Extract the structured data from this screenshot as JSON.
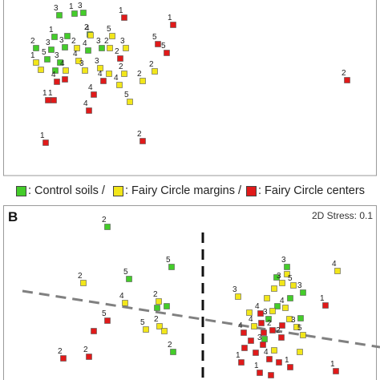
{
  "legend": {
    "items": [
      {
        "label": ": Control soils /",
        "color": "#44cc2a"
      },
      {
        "label": ": Fairy Circle margins /",
        "color": "#f2e61a"
      },
      {
        "label": ": Fairy Circle centers",
        "color": "#e01a1a"
      }
    ]
  },
  "chart_data": [
    {
      "type": "scatter",
      "panel_label": "",
      "stress_label": "",
      "series": [
        {
          "name": "Control soils",
          "color": "#44cc2a",
          "points": [
            {
              "x": 74,
              "y": 19,
              "label": "3"
            },
            {
              "x": 93,
              "y": 17,
              "label": "1"
            },
            {
              "x": 104,
              "y": 16,
              "label": "3"
            },
            {
              "x": 68,
              "y": 46,
              "label": "1"
            },
            {
              "x": 112,
              "y": 43,
              "label": "2"
            },
            {
              "x": 84,
              "y": 45,
              "label": ""
            },
            {
              "x": 45,
              "y": 60,
              "label": "2"
            },
            {
              "x": 64,
              "y": 62,
              "label": "3"
            },
            {
              "x": 81,
              "y": 59,
              "label": "3"
            },
            {
              "x": 59,
              "y": 74,
              "label": "5"
            },
            {
              "x": 75,
              "y": 78,
              "label": "3"
            },
            {
              "x": 110,
              "y": 63,
              "label": "4"
            },
            {
              "x": 127,
              "y": 60,
              "label": "3"
            },
            {
              "x": 69,
              "y": 88,
              "label": ""
            }
          ]
        },
        {
          "name": "Fairy Circle margins",
          "color": "#f2e61a",
          "points": [
            {
              "x": 113,
              "y": 44,
              "label": "4"
            },
            {
              "x": 140,
              "y": 45,
              "label": "5"
            },
            {
              "x": 96,
              "y": 60,
              "label": "2"
            },
            {
              "x": 45,
              "y": 78,
              "label": "1"
            },
            {
              "x": 98,
              "y": 76,
              "label": "4"
            },
            {
              "x": 137,
              "y": 60,
              "label": "2"
            },
            {
              "x": 157,
              "y": 60,
              "label": "3"
            },
            {
              "x": 51,
              "y": 87,
              "label": ""
            },
            {
              "x": 82,
              "y": 88,
              "label": "4"
            },
            {
              "x": 106,
              "y": 88,
              "label": "3"
            },
            {
              "x": 125,
              "y": 85,
              "label": "3"
            },
            {
              "x": 136,
              "y": 92,
              "label": ""
            },
            {
              "x": 155,
              "y": 92,
              "label": "2"
            },
            {
              "x": 178,
              "y": 101,
              "label": "2"
            },
            {
              "x": 149,
              "y": 106,
              "label": "4"
            },
            {
              "x": 193,
              "y": 89,
              "label": "2"
            },
            {
              "x": 162,
              "y": 127,
              "label": "5"
            }
          ]
        },
        {
          "name": "Fairy Circle centers",
          "color": "#e01a1a",
          "points": [
            {
              "x": 155,
              "y": 22,
              "label": "1"
            },
            {
              "x": 216,
              "y": 31,
              "label": "1"
            },
            {
              "x": 197,
              "y": 55,
              "label": "5"
            },
            {
              "x": 208,
              "y": 66,
              "label": "5"
            },
            {
              "x": 150,
              "y": 73,
              "label": "2"
            },
            {
              "x": 81,
              "y": 99,
              "label": ""
            },
            {
              "x": 71,
              "y": 102,
              "label": "4"
            },
            {
              "x": 129,
              "y": 101,
              "label": "4"
            },
            {
              "x": 117,
              "y": 118,
              "label": "4"
            },
            {
              "x": 60,
              "y": 125,
              "label": "1"
            },
            {
              "x": 67,
              "y": 125,
              "label": "1"
            },
            {
              "x": 111,
              "y": 138,
              "label": "4"
            },
            {
              "x": 57,
              "y": 178,
              "label": "1"
            },
            {
              "x": 178,
              "y": 176,
              "label": "2"
            },
            {
              "x": 433,
              "y": 100,
              "label": "2"
            }
          ]
        }
      ]
    },
    {
      "type": "scatter",
      "panel_label": "B",
      "stress_label": "2D Stress: 0.1",
      "series": [
        {
          "name": "Control soils",
          "color": "#44cc2a",
          "points": [
            {
              "x": 134,
              "y": 283,
              "label": "2"
            },
            {
              "x": 214,
              "y": 333,
              "label": "5"
            },
            {
              "x": 161,
              "y": 348,
              "label": "5"
            },
            {
              "x": 196,
              "y": 384,
              "label": ""
            },
            {
              "x": 208,
              "y": 382,
              "label": ""
            },
            {
              "x": 216,
              "y": 439,
              "label": "2"
            },
            {
              "x": 358,
              "y": 333,
              "label": "3"
            },
            {
              "x": 345,
              "y": 346,
              "label": ""
            },
            {
              "x": 378,
              "y": 365,
              "label": "3"
            },
            {
              "x": 362,
              "y": 372,
              "label": ""
            },
            {
              "x": 346,
              "y": 382,
              "label": ""
            },
            {
              "x": 375,
              "y": 397,
              "label": ""
            },
            {
              "x": 335,
              "y": 398,
              "label": "3"
            },
            {
              "x": 330,
              "y": 423,
              "label": ""
            }
          ]
        },
        {
          "name": "Fairy Circle margins",
          "color": "#f2e61a",
          "points": [
            {
              "x": 104,
              "y": 353,
              "label": "2"
            },
            {
              "x": 156,
              "y": 378,
              "label": "4"
            },
            {
              "x": 198,
              "y": 376,
              "label": "2"
            },
            {
              "x": 182,
              "y": 411,
              "label": "5"
            },
            {
              "x": 199,
              "y": 407,
              "label": "2"
            },
            {
              "x": 205,
              "y": 413,
              "label": ""
            },
            {
              "x": 358,
              "y": 342,
              "label": ""
            },
            {
              "x": 421,
              "y": 338,
              "label": "4"
            },
            {
              "x": 352,
              "y": 353,
              "label": "3"
            },
            {
              "x": 366,
              "y": 356,
              "label": "5"
            },
            {
              "x": 342,
              "y": 360,
              "label": ""
            },
            {
              "x": 297,
              "y": 370,
              "label": "3"
            },
            {
              "x": 333,
              "y": 372,
              "label": ""
            },
            {
              "x": 356,
              "y": 384,
              "label": "4"
            },
            {
              "x": 340,
              "y": 388,
              "label": ""
            },
            {
              "x": 311,
              "y": 390,
              "label": ""
            },
            {
              "x": 361,
              "y": 398,
              "label": ""
            },
            {
              "x": 317,
              "y": 407,
              "label": "4"
            },
            {
              "x": 370,
              "y": 408,
              "label": "3"
            },
            {
              "x": 378,
              "y": 418,
              "label": "5"
            },
            {
              "x": 342,
              "y": 437,
              "label": ""
            },
            {
              "x": 374,
              "y": 439,
              "label": ""
            }
          ]
        },
        {
          "name": "Fairy Circle centers",
          "color": "#e01a1a",
          "points": [
            {
              "x": 134,
              "y": 400,
              "label": "5"
            },
            {
              "x": 117,
              "y": 413,
              "label": ""
            },
            {
              "x": 79,
              "y": 447,
              "label": "2"
            },
            {
              "x": 111,
              "y": 445,
              "label": "2"
            },
            {
              "x": 406,
              "y": 381,
              "label": "1"
            },
            {
              "x": 325,
              "y": 391,
              "label": "4"
            },
            {
              "x": 326,
              "y": 403,
              "label": ""
            },
            {
              "x": 352,
              "y": 406,
              "label": ""
            },
            {
              "x": 340,
              "y": 412,
              "label": "2"
            },
            {
              "x": 304,
              "y": 415,
              "label": "4"
            },
            {
              "x": 329,
              "y": 415,
              "label": ""
            },
            {
              "x": 313,
              "y": 425,
              "label": ""
            },
            {
              "x": 351,
              "y": 421,
              "label": "2"
            },
            {
              "x": 328,
              "y": 430,
              "label": "3"
            },
            {
              "x": 305,
              "y": 434,
              "label": ""
            },
            {
              "x": 319,
              "y": 440,
              "label": ""
            },
            {
              "x": 336,
              "y": 448,
              "label": "4"
            },
            {
              "x": 348,
              "y": 452,
              "label": ""
            },
            {
              "x": 301,
              "y": 452,
              "label": "1"
            },
            {
              "x": 362,
              "y": 458,
              "label": "1"
            },
            {
              "x": 324,
              "y": 465,
              "label": "1"
            },
            {
              "x": 338,
              "y": 468,
              "label": ""
            },
            {
              "x": 419,
              "y": 463,
              "label": "1"
            }
          ]
        }
      ]
    }
  ]
}
